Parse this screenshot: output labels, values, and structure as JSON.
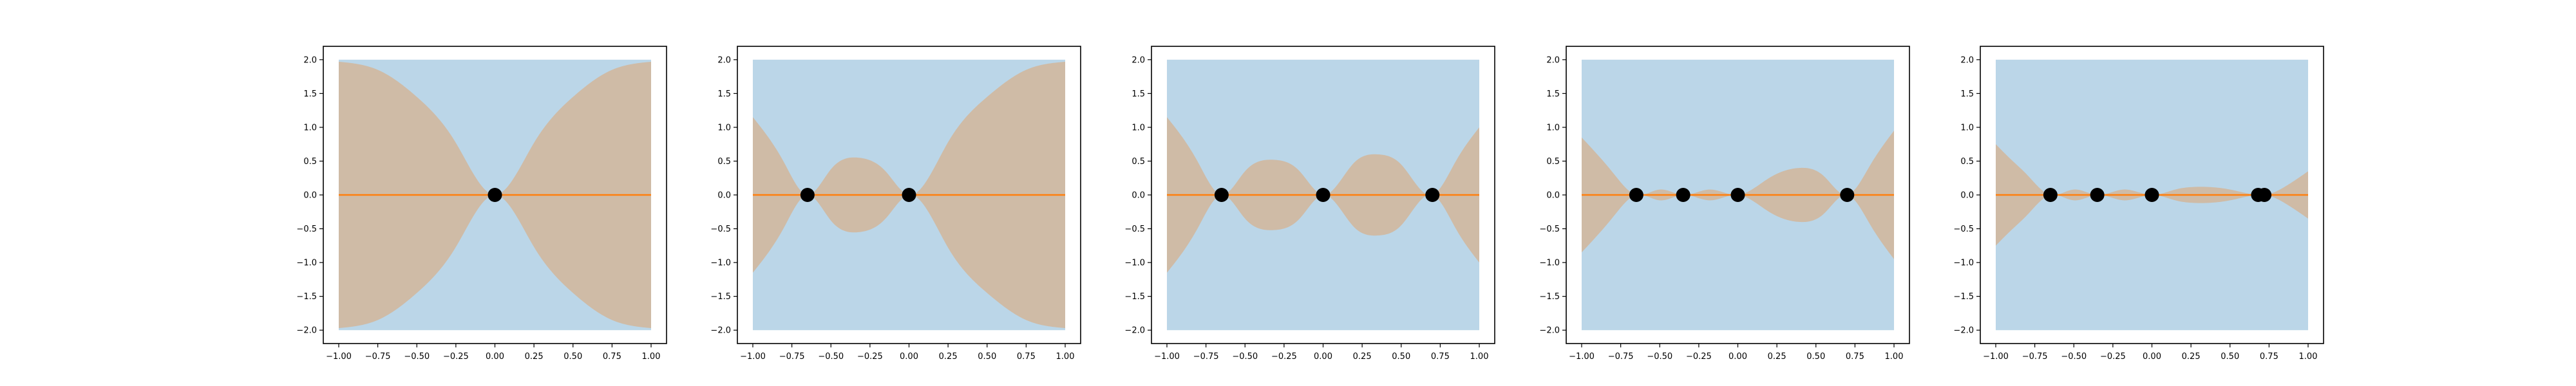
{
  "chart_data": [
    {
      "type": "area",
      "xlim": [
        -1.0,
        1.0
      ],
      "ylim": [
        -2.0,
        2.0
      ],
      "xticks": [
        "−1.00",
        "−0.75",
        "−0.50",
        "−0.25",
        "0.00",
        "0.25",
        "0.50",
        "0.75",
        "1.00"
      ],
      "yticks": [
        "−2.0",
        "−1.5",
        "−1.0",
        "−0.5",
        "0.0",
        "0.5",
        "1.0",
        "1.5",
        "2.0"
      ],
      "grid": false,
      "prior_band": {
        "lower": -2.0,
        "upper": 2.0
      },
      "mean": 0.0,
      "observations": [
        {
          "x": 0.0,
          "y": 0.0
        }
      ],
      "band_half_width": {
        "x": [
          -1.0,
          -0.75,
          -0.5,
          -0.25,
          0.0,
          0.25,
          0.5,
          0.75,
          1.0
        ],
        "y": [
          1.97,
          1.85,
          1.45,
          0.77,
          0.0,
          0.77,
          1.45,
          1.85,
          1.97
        ]
      }
    },
    {
      "type": "area",
      "xlim": [
        -1.0,
        1.0
      ],
      "ylim": [
        -2.0,
        2.0
      ],
      "xticks": [
        "−1.00",
        "−0.75",
        "−0.50",
        "−0.25",
        "0.00",
        "0.25",
        "0.50",
        "0.75",
        "1.00"
      ],
      "yticks": [
        "−2.0",
        "−1.5",
        "−1.0",
        "−0.5",
        "0.0",
        "0.5",
        "1.0",
        "1.5",
        "2.0"
      ],
      "grid": false,
      "prior_band": {
        "lower": -2.0,
        "upper": 2.0
      },
      "mean": 0.0,
      "observations": [
        {
          "x": -0.65,
          "y": 0.0
        },
        {
          "x": 0.0,
          "y": 0.0
        }
      ],
      "band_half_width": {
        "x": [
          -1.0,
          -0.9,
          -0.8,
          -0.65,
          -0.5,
          -0.32,
          -0.15,
          0.0,
          0.25,
          0.5,
          0.75,
          1.0
        ],
        "y": [
          1.15,
          0.85,
          0.48,
          0.0,
          0.38,
          0.55,
          0.35,
          0.0,
          0.78,
          1.45,
          1.85,
          1.97
        ]
      }
    },
    {
      "type": "area",
      "xlim": [
        -1.0,
        1.0
      ],
      "ylim": [
        -2.0,
        2.0
      ],
      "xticks": [
        "−1.00",
        "−0.75",
        "−0.50",
        "−0.25",
        "0.00",
        "0.25",
        "0.50",
        "0.75",
        "1.00"
      ],
      "yticks": [
        "−2.0",
        "−1.5",
        "−1.0",
        "−0.5",
        "0.0",
        "0.5",
        "1.0",
        "1.5",
        "2.0"
      ],
      "grid": false,
      "prior_band": {
        "lower": -2.0,
        "upper": 2.0
      },
      "mean": 0.0,
      "observations": [
        {
          "x": -0.65,
          "y": 0.0
        },
        {
          "x": 0.0,
          "y": 0.0
        },
        {
          "x": 0.7,
          "y": 0.0
        }
      ],
      "band_half_width": {
        "x": [
          -1.0,
          -0.9,
          -0.8,
          -0.65,
          -0.5,
          -0.32,
          -0.15,
          0.0,
          0.2,
          0.35,
          0.5,
          0.7,
          0.85,
          1.0
        ],
        "y": [
          1.15,
          0.85,
          0.48,
          0.0,
          0.35,
          0.52,
          0.35,
          0.0,
          0.48,
          0.6,
          0.45,
          0.0,
          0.5,
          1.0
        ]
      }
    },
    {
      "type": "area",
      "xlim": [
        -1.0,
        1.0
      ],
      "ylim": [
        -2.0,
        2.0
      ],
      "xticks": [
        "−1.00",
        "−0.75",
        "−0.50",
        "−0.25",
        "0.00",
        "0.25",
        "0.50",
        "0.75",
        "1.00"
      ],
      "yticks": [
        "−2.0",
        "−1.5",
        "−1.0",
        "−0.5",
        "0.0",
        "0.5",
        "1.0",
        "1.5",
        "2.0"
      ],
      "grid": false,
      "prior_band": {
        "lower": -2.0,
        "upper": 2.0
      },
      "mean": 0.0,
      "observations": [
        {
          "x": -0.65,
          "y": 0.0
        },
        {
          "x": -0.35,
          "y": 0.0
        },
        {
          "x": 0.0,
          "y": 0.0
        },
        {
          "x": 0.7,
          "y": 0.0
        }
      ],
      "band_half_width": {
        "x": [
          -1.0,
          -0.9,
          -0.8,
          -0.65,
          -0.5,
          -0.35,
          -0.18,
          0.0,
          0.2,
          0.4,
          0.55,
          0.7,
          0.85,
          1.0
        ],
        "y": [
          0.85,
          0.6,
          0.33,
          0.0,
          0.08,
          0.0,
          0.08,
          0.0,
          0.25,
          0.4,
          0.28,
          0.0,
          0.45,
          0.95
        ]
      }
    },
    {
      "type": "area",
      "xlim": [
        -1.0,
        1.0
      ],
      "ylim": [
        -2.0,
        2.0
      ],
      "xticks": [
        "−1.00",
        "−0.75",
        "−0.50",
        "−0.25",
        "0.00",
        "0.25",
        "0.50",
        "0.75",
        "1.00"
      ],
      "yticks": [
        "−2.0",
        "−1.5",
        "−1.0",
        "−0.5",
        "0.0",
        "0.5",
        "1.0",
        "1.5",
        "2.0"
      ],
      "grid": false,
      "prior_band": {
        "lower": -2.0,
        "upper": 2.0
      },
      "mean": 0.0,
      "observations": [
        {
          "x": -0.65,
          "y": 0.0
        },
        {
          "x": -0.35,
          "y": 0.0
        },
        {
          "x": 0.0,
          "y": 0.0
        },
        {
          "x": 0.68,
          "y": 0.0
        },
        {
          "x": 0.72,
          "y": 0.0
        }
      ],
      "band_half_width": {
        "x": [
          -1.0,
          -0.9,
          -0.8,
          -0.65,
          -0.5,
          -0.35,
          -0.18,
          0.0,
          0.15,
          0.3,
          0.5,
          0.68,
          0.72,
          0.85,
          1.0
        ],
        "y": [
          0.75,
          0.52,
          0.3,
          0.0,
          0.08,
          0.0,
          0.08,
          0.0,
          0.08,
          0.12,
          0.08,
          0.0,
          0.0,
          0.12,
          0.35
        ]
      }
    }
  ]
}
